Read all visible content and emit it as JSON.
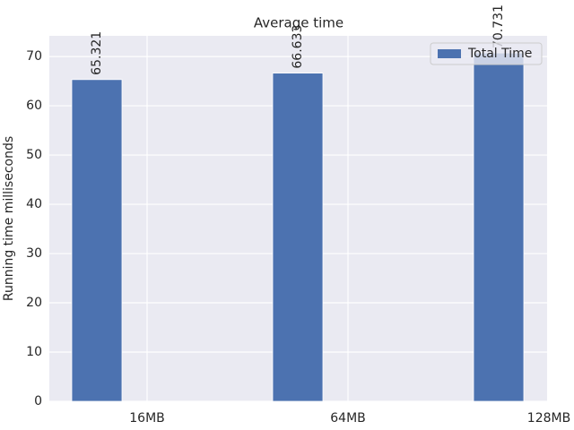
{
  "chart_data": {
    "type": "bar",
    "title": "Average time",
    "y_label": "Running time milliseconds",
    "categories": [
      "16MB",
      "64MB",
      "128MB"
    ],
    "series": [
      {
        "name": "Total Time",
        "color": "#4c72b0",
        "values": [
          65.321,
          66.633,
          70.731
        ]
      }
    ],
    "ylim": [
      0,
      74.2
    ],
    "yticks": [
      0,
      10,
      20,
      30,
      40,
      50,
      60,
      70
    ],
    "grid": true,
    "legend": "upper right"
  }
}
